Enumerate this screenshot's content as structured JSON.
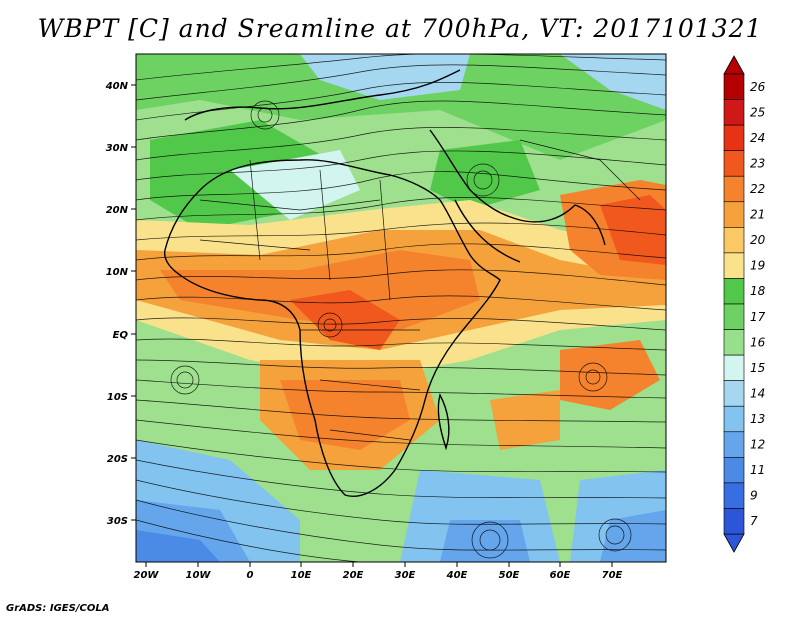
{
  "title": "WBPT [C] and Sreamline at 700hPa, VT: 2017101321",
  "credit": "GrADS: IGES/COLA",
  "map": {
    "lat_labels": [
      "40N",
      "30N",
      "20N",
      "10N",
      "EQ",
      "10S",
      "20S",
      "30S"
    ],
    "lon_labels": [
      "20W",
      "10W",
      "0",
      "10E",
      "20E",
      "30E",
      "40E",
      "50E",
      "60E",
      "70E"
    ],
    "colorbar": {
      "labels": [
        "26",
        "25",
        "24",
        "23",
        "22",
        "21",
        "20",
        "19",
        "18",
        "17",
        "16",
        "15",
        "14",
        "13",
        "12",
        "11",
        "9",
        "7"
      ],
      "colors": [
        "#b40000",
        "#d01818",
        "#e83214",
        "#f0581e",
        "#f5822d",
        "#f6a23c",
        "#fac864",
        "#fae28c",
        "#52c84a",
        "#6ed262",
        "#96e08c",
        "#d2f5f0",
        "#a5d7f0",
        "#82c3f0",
        "#64a5eb",
        "#4b8be6",
        "#376ee1",
        "#2d55d7"
      ]
    }
  }
}
